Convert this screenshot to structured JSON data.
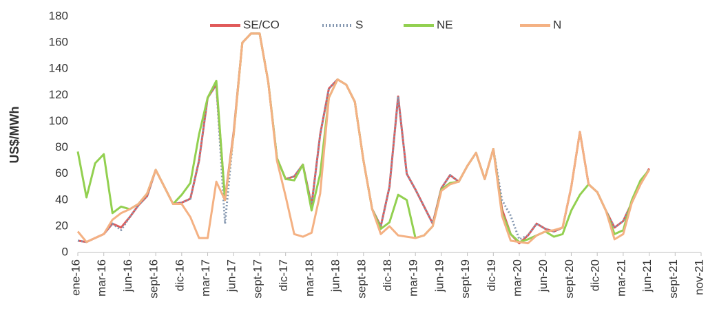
{
  "chart_data": {
    "type": "line",
    "y_label": "US$/MWh",
    "categories": [
      "ene-16",
      null,
      null,
      "mar-16",
      null,
      null,
      "jun-16",
      null,
      null,
      "sept-16",
      null,
      null,
      "dic-16",
      null,
      null,
      "mar-17",
      null,
      null,
      "jun-17",
      null,
      null,
      "sept-17",
      null,
      null,
      "dic-17",
      null,
      null,
      "mar-18",
      null,
      null,
      "jun-18",
      null,
      null,
      "sept-18",
      null,
      null,
      "dic-18",
      null,
      null,
      "mar-19",
      null,
      null,
      "jun-19",
      null,
      null,
      "sept-19",
      null,
      null,
      "dic-19",
      null,
      null,
      "mar-20",
      null,
      null,
      "jun-20",
      null,
      null,
      "sept-20",
      null,
      null,
      "dic-20",
      null,
      null,
      "mar-21",
      null,
      null,
      "jun-21",
      null,
      null,
      "sept-21",
      null,
      null,
      "nov-21"
    ],
    "series": [
      {
        "name": "SE/CO",
        "color": "#e05a5a",
        "dash": "solid",
        "values": [
          9,
          8,
          11,
          14,
          22,
          19,
          27,
          36,
          43,
          63,
          50,
          37,
          38,
          41,
          70,
          118,
          128,
          41,
          92,
          160,
          167,
          167,
          130,
          72,
          56,
          58,
          67,
          36,
          90,
          125,
          132,
          128,
          115,
          70,
          33,
          20,
          50,
          119,
          60,
          48,
          35,
          22,
          49,
          59,
          54,
          66,
          76,
          56,
          79,
          33,
          14,
          7,
          13,
          22,
          18,
          16,
          19,
          50,
          92,
          52,
          46,
          32,
          19,
          24,
          38,
          52,
          64,
          null,
          null,
          null,
          null,
          null,
          null
        ]
      },
      {
        "name": "S",
        "color": "#8497b0",
        "dash": "dotted",
        "values": [
          9,
          8,
          11,
          14,
          22,
          17,
          27,
          36,
          43,
          63,
          50,
          37,
          38,
          41,
          70,
          118,
          128,
          22,
          92,
          160,
          167,
          167,
          130,
          72,
          56,
          58,
          67,
          36,
          90,
          125,
          132,
          128,
          115,
          70,
          33,
          20,
          50,
          119,
          60,
          48,
          35,
          22,
          49,
          59,
          54,
          66,
          76,
          56,
          79,
          40,
          28,
          10,
          13,
          22,
          18,
          16,
          19,
          50,
          92,
          52,
          46,
          32,
          19,
          24,
          38,
          52,
          64,
          null,
          null,
          null,
          null,
          null,
          null
        ]
      },
      {
        "name": "NE",
        "color": "#92d050",
        "dash": "solid",
        "values": [
          77,
          42,
          68,
          75,
          30,
          35,
          33,
          37,
          45,
          63,
          50,
          37,
          44,
          53,
          90,
          118,
          131,
          40,
          90,
          160,
          167,
          167,
          130,
          72,
          56,
          55,
          67,
          32,
          60,
          118,
          132,
          128,
          115,
          70,
          33,
          18,
          23,
          44,
          40,
          11,
          13,
          20,
          48,
          53,
          54,
          66,
          76,
          56,
          79,
          30,
          14,
          8,
          10,
          13,
          16,
          12,
          14,
          32,
          44,
          52,
          46,
          32,
          14,
          17,
          40,
          55,
          63,
          null,
          null,
          null,
          null,
          null,
          null
        ]
      },
      {
        "name": "N",
        "color": "#f4b183",
        "dash": "solid",
        "values": [
          16,
          8,
          11,
          14,
          25,
          30,
          33,
          37,
          45,
          63,
          50,
          37,
          37,
          27,
          11,
          11,
          54,
          40,
          90,
          160,
          167,
          167,
          130,
          70,
          43,
          14,
          12,
          15,
          45,
          118,
          132,
          128,
          115,
          70,
          33,
          14,
          20,
          13,
          12,
          11,
          13,
          20,
          47,
          52,
          54,
          66,
          76,
          56,
          79,
          28,
          9,
          8,
          7,
          13,
          16,
          17,
          19,
          50,
          92,
          52,
          46,
          32,
          10,
          14,
          38,
          52,
          63,
          null,
          null,
          null,
          null,
          null,
          null
        ]
      }
    ],
    "ylim": [
      0,
      180
    ],
    "yticks": [
      0,
      20,
      40,
      60,
      80,
      100,
      120,
      140,
      160,
      180
    ],
    "grid": false,
    "legend": "top"
  }
}
